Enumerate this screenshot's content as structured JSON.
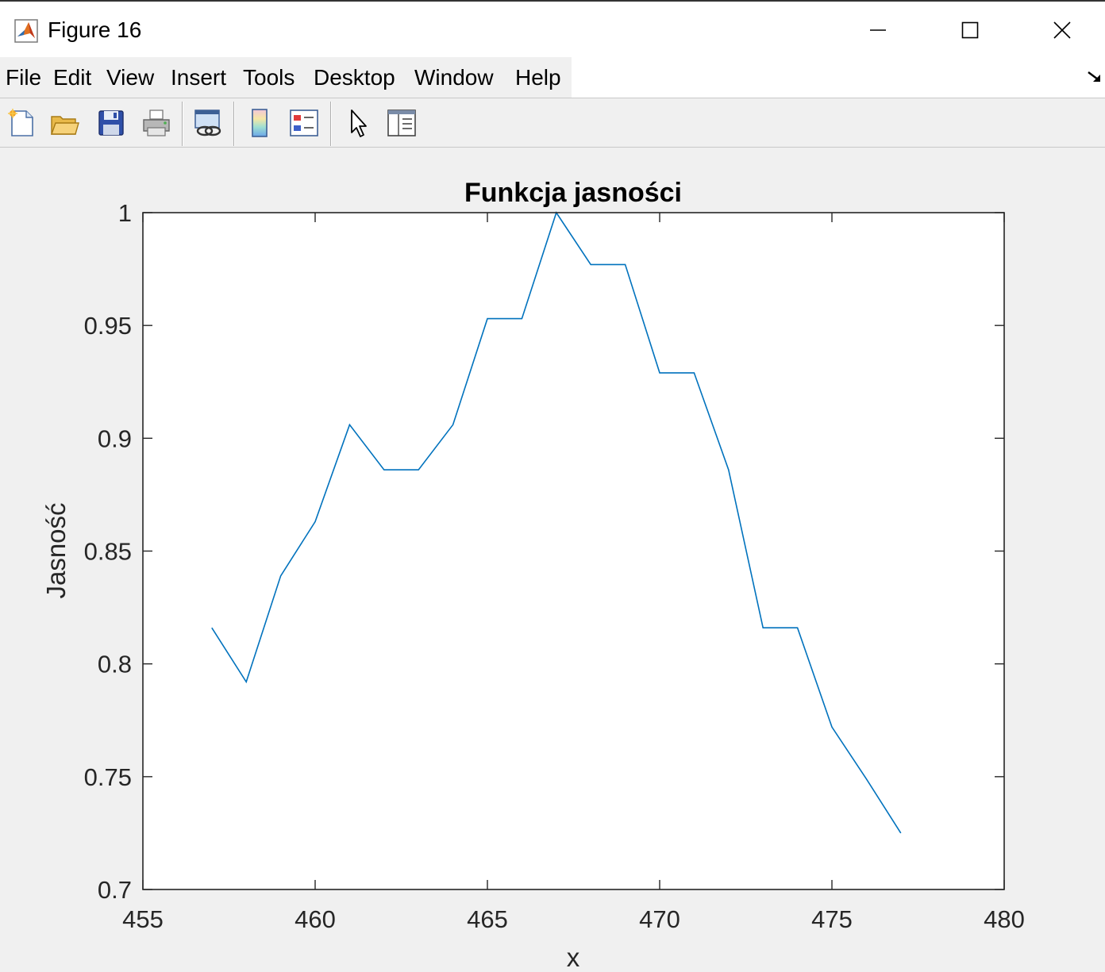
{
  "window": {
    "title": "Figure 16",
    "icon": "matlab-icon"
  },
  "controls": {
    "minimize_icon": "minimize-icon",
    "maximize_icon": "maximize-icon",
    "close_icon": "close-icon"
  },
  "menu": {
    "items": [
      {
        "label": "File"
      },
      {
        "label": "Edit"
      },
      {
        "label": "View"
      },
      {
        "label": "Insert"
      },
      {
        "label": "Tools"
      },
      {
        "label": "Desktop"
      },
      {
        "label": "Window"
      },
      {
        "label": "Help"
      }
    ],
    "dock_icon": "dock-arrow-icon"
  },
  "toolbar": {
    "buttons": [
      {
        "icon": "new-figure-icon"
      },
      {
        "icon": "open-file-icon"
      },
      {
        "icon": "save-icon"
      },
      {
        "icon": "print-icon"
      },
      {
        "icon": "link-plot-icon"
      },
      {
        "icon": "insert-colorbar-icon"
      },
      {
        "icon": "insert-legend-icon"
      },
      {
        "icon": "edit-plot-pointer-icon"
      },
      {
        "icon": "property-inspector-icon"
      }
    ]
  },
  "colors": {
    "series": "#0072bd",
    "axes": "#262626",
    "background": "#f0f0f0"
  },
  "chart_data": {
    "type": "line",
    "title": "Funkcja jasności",
    "xlabel": "x",
    "ylabel": "Jasność",
    "xlim": [
      455,
      480
    ],
    "ylim": [
      0.7,
      1
    ],
    "xticks": [
      455,
      460,
      465,
      470,
      475,
      480
    ],
    "yticks": [
      0.7,
      0.75,
      0.8,
      0.85,
      0.9,
      0.95,
      1
    ],
    "xtick_labels": [
      "455",
      "460",
      "465",
      "470",
      "475",
      "480"
    ],
    "ytick_labels": [
      "0.7",
      "0.75",
      "0.8",
      "0.85",
      "0.9",
      "0.95",
      "1"
    ],
    "grid": false,
    "series": [
      {
        "x": [
          457,
          458,
          459,
          460,
          461,
          462,
          463,
          464,
          465,
          466,
          467,
          468,
          469,
          470,
          471,
          472,
          473,
          474,
          475,
          476,
          477
        ],
        "y": [
          0.816,
          0.792,
          0.839,
          0.863,
          0.906,
          0.886,
          0.886,
          0.906,
          0.953,
          0.953,
          1.0,
          0.977,
          0.977,
          0.929,
          0.929,
          0.886,
          0.816,
          0.816,
          0.772,
          0.749,
          0.725
        ]
      }
    ]
  }
}
